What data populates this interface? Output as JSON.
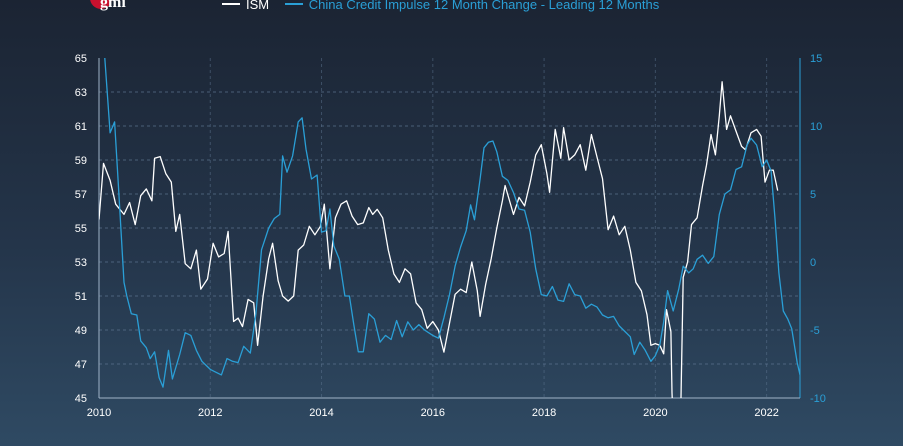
{
  "logo": {
    "text": "gmi"
  },
  "chart_data": {
    "type": "line",
    "title": "",
    "legend_position": "top",
    "x_ticks": [
      "2010",
      "2012",
      "2014",
      "2016",
      "2018",
      "2020",
      "2022"
    ],
    "xlim": [
      2010,
      2022.6
    ],
    "left_axis": {
      "ticks": [
        "65",
        "63",
        "61",
        "59",
        "57",
        "55",
        "53",
        "51",
        "49",
        "47",
        "45"
      ],
      "ylim": [
        45,
        65
      ]
    },
    "right_axis": {
      "ticks": [
        "15",
        "10",
        "5",
        "0",
        "-5",
        "-10"
      ],
      "ylim": [
        -10,
        15
      ]
    },
    "grid": true,
    "series": [
      {
        "name": "ISM",
        "axis": "left",
        "color": "#ffffff",
        "points": [
          [
            2010.0,
            55.5
          ],
          [
            2010.08,
            58.8
          ],
          [
            2010.2,
            57.8
          ],
          [
            2010.3,
            56.4
          ],
          [
            2010.45,
            55.8
          ],
          [
            2010.55,
            56.5
          ],
          [
            2010.65,
            55.2
          ],
          [
            2010.75,
            56.9
          ],
          [
            2010.85,
            57.3
          ],
          [
            2010.95,
            56.6
          ],
          [
            2011.0,
            59.1
          ],
          [
            2011.1,
            59.2
          ],
          [
            2011.2,
            58.2
          ],
          [
            2011.3,
            57.7
          ],
          [
            2011.38,
            54.8
          ],
          [
            2011.45,
            55.8
          ],
          [
            2011.55,
            52.9
          ],
          [
            2011.65,
            52.6
          ],
          [
            2011.75,
            53.7
          ],
          [
            2011.83,
            51.4
          ],
          [
            2011.95,
            52.0
          ],
          [
            2012.05,
            54.1
          ],
          [
            2012.15,
            53.3
          ],
          [
            2012.25,
            53.5
          ],
          [
            2012.32,
            54.8
          ],
          [
            2012.42,
            49.5
          ],
          [
            2012.5,
            49.7
          ],
          [
            2012.58,
            49.2
          ],
          [
            2012.68,
            50.8
          ],
          [
            2012.78,
            50.6
          ],
          [
            2012.85,
            48.1
          ],
          [
            2012.95,
            51.0
          ],
          [
            2013.05,
            53.2
          ],
          [
            2013.12,
            54.1
          ],
          [
            2013.22,
            51.9
          ],
          [
            2013.3,
            51.0
          ],
          [
            2013.4,
            50.7
          ],
          [
            2013.5,
            51.0
          ],
          [
            2013.58,
            53.7
          ],
          [
            2013.68,
            54.0
          ],
          [
            2013.78,
            55.1
          ],
          [
            2013.88,
            54.6
          ],
          [
            2013.98,
            55.1
          ],
          [
            2014.05,
            56.4
          ],
          [
            2014.15,
            52.6
          ],
          [
            2014.25,
            55.6
          ],
          [
            2014.35,
            56.4
          ],
          [
            2014.45,
            56.6
          ],
          [
            2014.55,
            55.7
          ],
          [
            2014.65,
            55.2
          ],
          [
            2014.75,
            55.3
          ],
          [
            2014.85,
            56.2
          ],
          [
            2014.92,
            55.8
          ],
          [
            2015.0,
            56.1
          ],
          [
            2015.1,
            55.6
          ],
          [
            2015.2,
            53.7
          ],
          [
            2015.3,
            52.3
          ],
          [
            2015.4,
            51.8
          ],
          [
            2015.5,
            52.6
          ],
          [
            2015.6,
            52.3
          ],
          [
            2015.7,
            50.6
          ],
          [
            2015.8,
            50.2
          ],
          [
            2015.9,
            49.1
          ],
          [
            2016.0,
            49.5
          ],
          [
            2016.1,
            49.0
          ],
          [
            2016.2,
            47.7
          ],
          [
            2016.3,
            49.4
          ],
          [
            2016.4,
            51.1
          ],
          [
            2016.5,
            51.4
          ],
          [
            2016.6,
            51.2
          ],
          [
            2016.7,
            53.0
          ],
          [
            2016.8,
            51.3
          ],
          [
            2016.85,
            49.8
          ],
          [
            2016.95,
            51.7
          ],
          [
            2017.05,
            53.2
          ],
          [
            2017.15,
            55.0
          ],
          [
            2017.25,
            56.6
          ],
          [
            2017.3,
            57.5
          ],
          [
            2017.45,
            55.8
          ],
          [
            2017.55,
            56.8
          ],
          [
            2017.65,
            56.3
          ],
          [
            2017.75,
            57.7
          ],
          [
            2017.85,
            59.3
          ],
          [
            2017.95,
            59.9
          ],
          [
            2018.05,
            58.2
          ],
          [
            2018.1,
            57.1
          ],
          [
            2018.2,
            60.8
          ],
          [
            2018.3,
            59.1
          ],
          [
            2018.35,
            60.9
          ],
          [
            2018.45,
            59.0
          ],
          [
            2018.55,
            59.3
          ],
          [
            2018.65,
            59.9
          ],
          [
            2018.75,
            58.4
          ],
          [
            2018.85,
            60.5
          ],
          [
            2018.95,
            59.2
          ],
          [
            2019.05,
            57.9
          ],
          [
            2019.15,
            54.9
          ],
          [
            2019.25,
            55.7
          ],
          [
            2019.35,
            54.6
          ],
          [
            2019.45,
            55.1
          ],
          [
            2019.55,
            53.7
          ],
          [
            2019.65,
            51.8
          ],
          [
            2019.75,
            51.3
          ],
          [
            2019.85,
            49.9
          ],
          [
            2019.92,
            48.1
          ],
          [
            2020.0,
            48.2
          ],
          [
            2020.08,
            48.1
          ],
          [
            2020.15,
            47.6
          ],
          [
            2020.2,
            50.2
          ],
          [
            2020.28,
            48.9
          ],
          [
            2020.3,
            45.3
          ],
          [
            2020.35,
            41.5
          ],
          [
            2020.45,
            43.1
          ],
          [
            2020.5,
            52.1
          ],
          [
            2020.58,
            53.0
          ],
          [
            2020.65,
            55.2
          ],
          [
            2020.75,
            55.6
          ],
          [
            2020.85,
            57.5
          ],
          [
            2020.92,
            58.7
          ],
          [
            2021.0,
            60.5
          ],
          [
            2021.08,
            59.3
          ],
          [
            2021.15,
            61.6
          ],
          [
            2021.2,
            63.6
          ],
          [
            2021.28,
            60.8
          ],
          [
            2021.35,
            61.6
          ],
          [
            2021.45,
            60.7
          ],
          [
            2021.55,
            59.8
          ],
          [
            2021.62,
            59.6
          ],
          [
            2021.72,
            60.6
          ],
          [
            2021.82,
            60.8
          ],
          [
            2021.9,
            60.4
          ],
          [
            2021.97,
            57.7
          ],
          [
            2022.05,
            58.4
          ],
          [
            2022.12,
            58.4
          ],
          [
            2022.2,
            57.2
          ]
        ]
      },
      {
        "name": "China Credit Impulse 12 Month Change - Leading 12 Months",
        "axis": "right",
        "color": "#2a9fd6",
        "points": [
          [
            2010.1,
            15.2
          ],
          [
            2010.2,
            9.5
          ],
          [
            2010.28,
            10.3
          ],
          [
            2010.35,
            5.5
          ],
          [
            2010.45,
            -1.5
          ],
          [
            2010.5,
            -2.5
          ],
          [
            2010.58,
            -3.8
          ],
          [
            2010.68,
            -3.9
          ],
          [
            2010.75,
            -5.8
          ],
          [
            2010.85,
            -6.3
          ],
          [
            2010.92,
            -7.1
          ],
          [
            2011.0,
            -6.6
          ],
          [
            2011.08,
            -8.5
          ],
          [
            2011.15,
            -9.2
          ],
          [
            2011.25,
            -6.5
          ],
          [
            2011.32,
            -8.6
          ],
          [
            2011.45,
            -6.8
          ],
          [
            2011.55,
            -5.2
          ],
          [
            2011.65,
            -5.4
          ],
          [
            2011.75,
            -6.5
          ],
          [
            2011.85,
            -7.3
          ],
          [
            2012.0,
            -7.9
          ],
          [
            2012.1,
            -8.1
          ],
          [
            2012.2,
            -8.3
          ],
          [
            2012.3,
            -7.1
          ],
          [
            2012.4,
            -7.3
          ],
          [
            2012.5,
            -7.4
          ],
          [
            2012.6,
            -6.2
          ],
          [
            2012.72,
            -6.7
          ],
          [
            2012.82,
            -3.8
          ],
          [
            2012.92,
            0.9
          ],
          [
            2013.05,
            2.5
          ],
          [
            2013.15,
            3.2
          ],
          [
            2013.25,
            3.5
          ],
          [
            2013.3,
            7.8
          ],
          [
            2013.38,
            6.6
          ],
          [
            2013.48,
            7.8
          ],
          [
            2013.58,
            10.3
          ],
          [
            2013.65,
            10.6
          ],
          [
            2013.72,
            8.3
          ],
          [
            2013.82,
            6.1
          ],
          [
            2013.92,
            6.4
          ],
          [
            2014.0,
            2.2
          ],
          [
            2014.08,
            2.3
          ],
          [
            2014.15,
            3.9
          ],
          [
            2014.22,
            1.2
          ],
          [
            2014.32,
            0.2
          ],
          [
            2014.42,
            -2.5
          ],
          [
            2014.5,
            -2.5
          ],
          [
            2014.58,
            -4.6
          ],
          [
            2014.66,
            -6.6
          ],
          [
            2014.75,
            -6.6
          ],
          [
            2014.85,
            -3.8
          ],
          [
            2014.95,
            -4.2
          ],
          [
            2015.05,
            -5.9
          ],
          [
            2015.15,
            -5.4
          ],
          [
            2015.25,
            -5.7
          ],
          [
            2015.35,
            -4.3
          ],
          [
            2015.45,
            -5.5
          ],
          [
            2015.55,
            -4.4
          ],
          [
            2015.65,
            -5.0
          ],
          [
            2015.75,
            -4.6
          ],
          [
            2015.85,
            -5.0
          ],
          [
            2016.0,
            -5.4
          ],
          [
            2016.1,
            -5.6
          ],
          [
            2016.2,
            -4.1
          ],
          [
            2016.3,
            -2.4
          ],
          [
            2016.4,
            -0.3
          ],
          [
            2016.5,
            1.1
          ],
          [
            2016.6,
            2.3
          ],
          [
            2016.68,
            4.2
          ],
          [
            2016.75,
            3.1
          ],
          [
            2016.85,
            6.1
          ],
          [
            2016.92,
            8.4
          ],
          [
            2017.0,
            8.8
          ],
          [
            2017.08,
            8.9
          ],
          [
            2017.15,
            8.1
          ],
          [
            2017.25,
            6.3
          ],
          [
            2017.35,
            6.0
          ],
          [
            2017.45,
            5.1
          ],
          [
            2017.55,
            3.9
          ],
          [
            2017.65,
            3.8
          ],
          [
            2017.75,
            2.2
          ],
          [
            2017.85,
            -0.5
          ],
          [
            2017.95,
            -2.4
          ],
          [
            2018.05,
            -2.5
          ],
          [
            2018.15,
            -1.8
          ],
          [
            2018.25,
            -2.8
          ],
          [
            2018.35,
            -2.9
          ],
          [
            2018.45,
            -1.6
          ],
          [
            2018.55,
            -2.4
          ],
          [
            2018.65,
            -2.5
          ],
          [
            2018.75,
            -3.4
          ],
          [
            2018.85,
            -3.1
          ],
          [
            2018.95,
            -3.3
          ],
          [
            2019.05,
            -3.9
          ],
          [
            2019.15,
            -4.1
          ],
          [
            2019.25,
            -4.0
          ],
          [
            2019.35,
            -4.7
          ],
          [
            2019.45,
            -5.1
          ],
          [
            2019.55,
            -5.5
          ],
          [
            2019.62,
            -6.8
          ],
          [
            2019.72,
            -5.9
          ],
          [
            2019.82,
            -6.5
          ],
          [
            2019.92,
            -7.3
          ],
          [
            2020.0,
            -6.9
          ],
          [
            2020.08,
            -6.1
          ],
          [
            2020.15,
            -4.4
          ],
          [
            2020.22,
            -2.1
          ],
          [
            2020.32,
            -3.6
          ],
          [
            2020.42,
            -2.0
          ],
          [
            2020.5,
            -0.3
          ],
          [
            2020.6,
            -0.8
          ],
          [
            2020.68,
            -0.5
          ],
          [
            2020.75,
            0.2
          ],
          [
            2020.85,
            0.5
          ],
          [
            2020.95,
            -0.1
          ],
          [
            2021.05,
            0.4
          ],
          [
            2021.15,
            3.5
          ],
          [
            2021.25,
            5.0
          ],
          [
            2021.35,
            5.3
          ],
          [
            2021.45,
            6.8
          ],
          [
            2021.55,
            7.0
          ],
          [
            2021.65,
            8.6
          ],
          [
            2021.72,
            9.1
          ],
          [
            2021.82,
            8.6
          ],
          [
            2021.92,
            7.0
          ],
          [
            2022.0,
            7.5
          ],
          [
            2022.08,
            6.7
          ],
          [
            2022.15,
            3.2
          ],
          [
            2022.22,
            -0.8
          ],
          [
            2022.3,
            -3.6
          ],
          [
            2022.38,
            -4.2
          ],
          [
            2022.45,
            -4.9
          ],
          [
            2022.55,
            -7.4
          ],
          [
            2022.6,
            -8.3
          ]
        ]
      }
    ]
  }
}
